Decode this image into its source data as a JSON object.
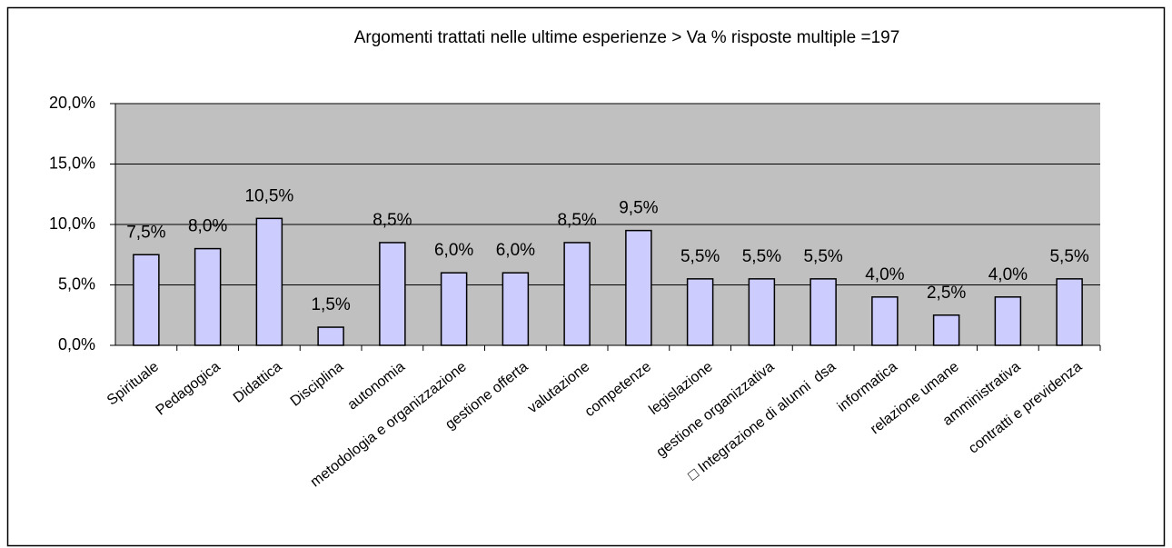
{
  "chart_data": {
    "type": "bar",
    "title": "Argomenti trattati nelle ultime esperienze > Va % risposte multiple =197",
    "categories": [
      "Spirituale",
      "Pedagogica",
      "Didattica",
      "Disciplina",
      "autonomia",
      "metodologia e organizzazione",
      "gestione offerta",
      "valutazione",
      "competenze",
      "legislazione",
      "gestione organizzativa",
      "□ Integrazione di alunni  dsa",
      "informatica",
      "relazione umane",
      "amministrativa",
      "contratti e previdenza"
    ],
    "values": [
      7.5,
      8.0,
      10.5,
      1.5,
      8.5,
      6.0,
      6.0,
      8.5,
      9.5,
      5.5,
      5.5,
      5.5,
      4.0,
      2.5,
      4.0,
      5.5
    ],
    "value_labels": [
      "7,5%",
      "8,0%",
      "10,5%",
      "1,5%",
      "8,5%",
      "6,0%",
      "6,0%",
      "8,5%",
      "9,5%",
      "5,5%",
      "5,5%",
      "5,5%",
      "4,0%",
      "2,5%",
      "4,0%",
      "5,5%"
    ],
    "color": "#ccccff",
    "ylim": [
      0,
      20
    ],
    "yticks": [
      {
        "value": 0,
        "label": "0,0%"
      },
      {
        "value": 5,
        "label": "5,0%"
      },
      {
        "value": 10,
        "label": "10,0%"
      },
      {
        "value": 15,
        "label": "15,0%"
      },
      {
        "value": 20,
        "label": "20,0%"
      }
    ],
    "grid": true
  }
}
